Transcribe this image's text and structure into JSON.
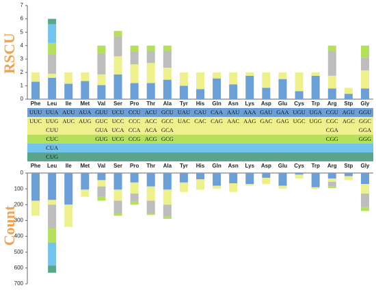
{
  "chart_data": [
    {
      "type": "stacked_bar",
      "y_label": "RSCU",
      "categories": [
        "Phe",
        "Leu",
        "Ile",
        "Met",
        "Val",
        "Ser",
        "Pro",
        "Thr",
        "Ala",
        "Tyr",
        "His",
        "Gln",
        "Asn",
        "Lys",
        "Asp",
        "Glu",
        "Cys",
        "Trp",
        "Arg",
        "Stp",
        "Gly"
      ],
      "ylim": [
        0,
        7
      ],
      "yticks": [
        0,
        1,
        2,
        3,
        4,
        5,
        6,
        7
      ],
      "y_inverted": false,
      "series": [
        {
          "color": "#6b9fd6",
          "values": [
            1.3,
            1.6,
            1.15,
            1.35,
            1.05,
            1.85,
            1.2,
            1.2,
            1.45,
            1.0,
            0.75,
            1.55,
            1.1,
            1.75,
            0.85,
            1.5,
            0.6,
            1.75,
            0.8,
            0.4,
            0.8
          ]
        },
        {
          "color": "#eef08e",
          "values": [
            0.7,
            0.3,
            0.85,
            0.65,
            0.8,
            1.35,
            1.4,
            1.5,
            0.9,
            1.0,
            1.25,
            0.45,
            0.9,
            0.25,
            1.15,
            0.5,
            1.4,
            0.25,
            0.95,
            0.45,
            1.35
          ]
        },
        {
          "color": "#bdbdbd",
          "values": [
            null,
            1.45,
            null,
            null,
            1.55,
            1.45,
            0.95,
            0.9,
            1.25,
            null,
            null,
            null,
            null,
            null,
            null,
            null,
            null,
            null,
            1.85,
            null,
            0.95
          ]
        },
        {
          "color": "#b4e05c",
          "values": [
            null,
            0.85,
            null,
            null,
            0.6,
            0.45,
            0.45,
            0.4,
            0.4,
            null,
            null,
            null,
            null,
            null,
            null,
            null,
            null,
            null,
            0.4,
            null,
            0.9
          ]
        },
        {
          "color": "#72c4ee",
          "values": [
            null,
            1.4,
            null,
            null,
            null,
            null,
            null,
            null,
            null,
            null,
            null,
            null,
            null,
            null,
            null,
            null,
            null,
            null,
            null,
            null,
            null
          ]
        },
        {
          "color": "#5aa68a",
          "values": [
            null,
            0.4,
            null,
            null,
            null,
            null,
            null,
            null,
            null,
            null,
            null,
            null,
            null,
            null,
            null,
            null,
            null,
            null,
            null,
            null,
            null
          ]
        }
      ]
    },
    {
      "type": "stacked_bar",
      "y_label": "Count",
      "categories": [
        "Phe",
        "Leu",
        "Ile",
        "Met",
        "Val",
        "Ser",
        "Pro",
        "Thr",
        "Ala",
        "Tyr",
        "His",
        "Gln",
        "Asn",
        "Lys",
        "Asp",
        "Glu",
        "Cys",
        "Trp",
        "Arg",
        "Stp",
        "Gly"
      ],
      "ylim": [
        0,
        700
      ],
      "yticks": [
        0,
        100,
        200,
        300,
        400,
        500,
        600,
        700
      ],
      "y_inverted": true,
      "series": [
        {
          "color": "#6b9fd6",
          "values": [
            175,
            170,
            200,
            105,
            45,
            105,
            60,
            85,
            105,
            60,
            40,
            80,
            65,
            70,
            30,
            80,
            10,
            90,
            35,
            20,
            70
          ]
        },
        {
          "color": "#eef08e",
          "values": [
            95,
            30,
            140,
            45,
            40,
            70,
            70,
            90,
            95,
            60,
            65,
            20,
            55,
            10,
            40,
            20,
            25,
            10,
            20,
            25,
            60
          ]
        },
        {
          "color": "#bdbdbd",
          "values": [
            null,
            150,
            null,
            null,
            65,
            80,
            50,
            80,
            75,
            null,
            null,
            null,
            null,
            null,
            null,
            null,
            null,
            null,
            30,
            null,
            85
          ]
        },
        {
          "color": "#b4e05c",
          "values": [
            null,
            90,
            null,
            null,
            25,
            15,
            20,
            10,
            15,
            null,
            null,
            null,
            null,
            null,
            null,
            null,
            null,
            null,
            10,
            null,
            25
          ]
        },
        {
          "color": "#72c4ee",
          "values": [
            null,
            145,
            null,
            null,
            null,
            null,
            null,
            null,
            null,
            null,
            null,
            null,
            null,
            null,
            null,
            null,
            null,
            null,
            null,
            null,
            null
          ]
        },
        {
          "color": "#5aa68a",
          "values": [
            null,
            45,
            null,
            null,
            null,
            null,
            null,
            null,
            null,
            null,
            null,
            null,
            null,
            null,
            null,
            null,
            null,
            null,
            null,
            null,
            null
          ]
        }
      ]
    }
  ],
  "codon_table": {
    "row_colors": [
      "#6b9fd6",
      "#eef08e",
      "#eef08e",
      "#b4e05c",
      "#72c4ee",
      "#5aa68a"
    ],
    "rows": [
      [
        "UUU",
        "UUA",
        "AUU",
        "AUA",
        "GUU",
        "UCU",
        "CCU",
        "ACU",
        "GCU",
        "UAU",
        "CAU",
        "CAA",
        "AAU",
        "AAA",
        "GAU",
        "GAA",
        "UGU",
        "UGA",
        "CGU",
        "AGU",
        "GGU"
      ],
      [
        "UUC",
        "UUG",
        "AUC",
        "AUG",
        "GUC",
        "UCC",
        "CCC",
        "ACC",
        "GCC",
        "UAC",
        "CAC",
        "CAG",
        "AAC",
        "AAG",
        "GAC",
        "GAG",
        "UGC",
        "UGG",
        "CGC",
        "AGC",
        "GGC"
      ],
      [
        null,
        "CUU",
        null,
        null,
        "GUA",
        "UCA",
        "CCA",
        "ACA",
        "GCA",
        null,
        null,
        null,
        null,
        null,
        null,
        null,
        null,
        null,
        "CGA",
        null,
        "GGA"
      ],
      [
        null,
        "CUC",
        null,
        null,
        "GUG",
        "UCG",
        "CCG",
        "ACG",
        "GCG",
        null,
        null,
        null,
        null,
        null,
        null,
        null,
        null,
        null,
        "CGG",
        null,
        "GGG"
      ],
      [
        null,
        "CUA",
        null,
        null,
        null,
        null,
        null,
        null,
        null,
        null,
        null,
        null,
        null,
        null,
        null,
        null,
        null,
        null,
        null,
        null,
        null
      ],
      [
        null,
        "CUG",
        null,
        null,
        null,
        null,
        null,
        null,
        null,
        null,
        null,
        null,
        null,
        null,
        null,
        null,
        null,
        null,
        null,
        null,
        null
      ]
    ]
  }
}
